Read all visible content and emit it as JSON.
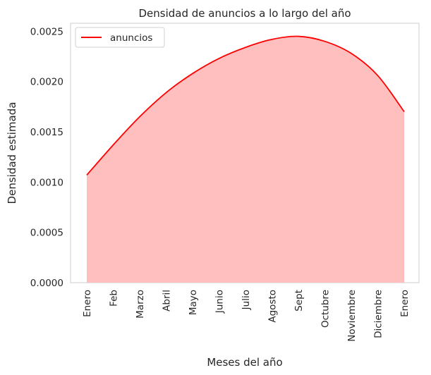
{
  "chart_data": {
    "type": "area",
    "title": "Densidad de anuncios a lo largo del año",
    "xlabel": "Meses del año",
    "ylabel": "Densidad estimada",
    "categories": [
      "Enero",
      "Feb",
      "Marzo",
      "Abril",
      "Mayo",
      "Junio",
      "Julio",
      "Agosto",
      "Sept",
      "Octubre",
      "Noviembre",
      "Diciembre",
      "Enero"
    ],
    "yticks": [
      "0.0000",
      "0.0005",
      "0.0010",
      "0.0015",
      "0.0020",
      "0.0025"
    ],
    "ylim": [
      0,
      0.00258
    ],
    "grid": false,
    "legend_position": "top-left",
    "series": [
      {
        "name": "anuncios",
        "color": "#ff0000",
        "fill_color": "#ffbfbf",
        "values": [
          0.00107,
          0.00137,
          0.00165,
          0.00189,
          0.00208,
          0.00223,
          0.00234,
          0.00242,
          0.00245,
          0.0024,
          0.00228,
          0.00206,
          0.0017
        ]
      }
    ]
  }
}
